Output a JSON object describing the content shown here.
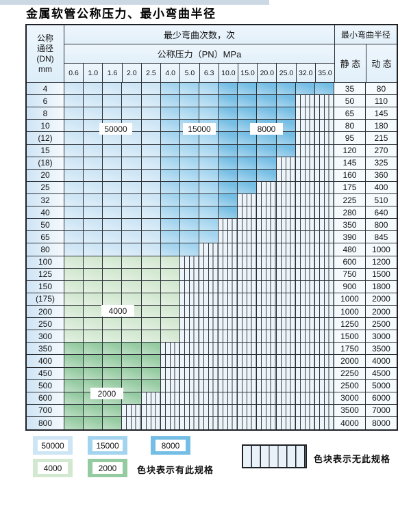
{
  "title": "金属软管公称压力、最小弯曲半径",
  "colors": {
    "blue_50000": "#cde5f5",
    "blue_15000": "#a3d4ef",
    "blue_8000": "#74bde4",
    "green_4000": "#d3e8d1",
    "green_2000": "#95cba1",
    "striped_bg": "#edf4fa"
  },
  "table": {
    "header": {
      "dn_lines": [
        "公称",
        "通径",
        "(DN)",
        "mm"
      ],
      "bend_cycles_label": "最少弯曲次数，次",
      "pressure_label": "公称压力（PN）MPa",
      "pressure_values": [
        "0.6",
        "1.0",
        "1.6",
        "2.0",
        "2.5",
        "4.0",
        "5.0",
        "6.3",
        "10.0",
        "15.0",
        "20.0",
        "25.0",
        "32.0",
        "35.0"
      ],
      "min_radius_label": "最小弯曲半径",
      "static_label": "静 态",
      "dynamic_label": "动 态"
    },
    "rows": [
      {
        "dn": "4",
        "ct": 13,
        "band": "b",
        "static": "35",
        "dynamic": "80"
      },
      {
        "dn": "6",
        "ct": 11,
        "band": "b",
        "static": "50",
        "dynamic": "110"
      },
      {
        "dn": "8",
        "ct": 11,
        "band": "b",
        "static": "65",
        "dynamic": "145"
      },
      {
        "dn": "10",
        "ct": 11,
        "band": "b",
        "static": "80",
        "dynamic": "180"
      },
      {
        "dn": "(12)",
        "ct": 11,
        "band": "b",
        "static": "95",
        "dynamic": "215"
      },
      {
        "dn": "15",
        "ct": 11,
        "band": "b",
        "static": "120",
        "dynamic": "270"
      },
      {
        "dn": "(18)",
        "ct": 10,
        "band": "b",
        "static": "145",
        "dynamic": "325"
      },
      {
        "dn": "20",
        "ct": 10,
        "band": "b",
        "static": "160",
        "dynamic": "360"
      },
      {
        "dn": "25",
        "ct": 9,
        "band": "b",
        "static": "175",
        "dynamic": "400"
      },
      {
        "dn": "32",
        "ct": 8,
        "band": "b",
        "static": "225",
        "dynamic": "510"
      },
      {
        "dn": "40",
        "ct": 8,
        "band": "b",
        "static": "280",
        "dynamic": "640"
      },
      {
        "dn": "50",
        "ct": 7,
        "band": "b",
        "static": "350",
        "dynamic": "800"
      },
      {
        "dn": "65",
        "ct": 7,
        "band": "b",
        "static": "390",
        "dynamic": "845"
      },
      {
        "dn": "80",
        "ct": 6,
        "band": "b",
        "static": "480",
        "dynamic": "1000"
      },
      {
        "dn": "100",
        "ct": 5,
        "band": "g1",
        "static": "600",
        "dynamic": "1200"
      },
      {
        "dn": "125",
        "ct": 5,
        "band": "g1",
        "static": "750",
        "dynamic": "1500"
      },
      {
        "dn": "150",
        "ct": 5,
        "band": "g1",
        "static": "900",
        "dynamic": "1800"
      },
      {
        "dn": "(175)",
        "ct": 5,
        "band": "g1",
        "static": "1000",
        "dynamic": "2000"
      },
      {
        "dn": "200",
        "ct": 5,
        "band": "g1",
        "static": "1000",
        "dynamic": "2000"
      },
      {
        "dn": "250",
        "ct": 5,
        "band": "g1",
        "static": "1250",
        "dynamic": "2500"
      },
      {
        "dn": "300",
        "ct": 5,
        "band": "g1",
        "static": "1500",
        "dynamic": "3000"
      },
      {
        "dn": "350",
        "ct": 4,
        "band": "g2",
        "static": "1750",
        "dynamic": "3500"
      },
      {
        "dn": "400",
        "ct": 4,
        "band": "g2",
        "static": "2000",
        "dynamic": "4000"
      },
      {
        "dn": "450",
        "ct": 4,
        "band": "g2",
        "static": "2250",
        "dynamic": "4500"
      },
      {
        "dn": "500",
        "ct": 4,
        "band": "g2",
        "static": "2500",
        "dynamic": "5000"
      },
      {
        "dn": "600",
        "ct": 3,
        "band": "g2",
        "static": "3000",
        "dynamic": "6000"
      },
      {
        "dn": "700",
        "ct": 2,
        "band": "g2",
        "static": "3500",
        "dynamic": "7000"
      },
      {
        "dn": "800",
        "ct": 2,
        "band": "g2",
        "static": "4000",
        "dynamic": "8000"
      }
    ]
  },
  "region_labels": [
    {
      "text": "50000"
    },
    {
      "text": "15000"
    },
    {
      "text": "8000"
    },
    {
      "text": "4000"
    },
    {
      "text": "2000"
    }
  ],
  "legend": {
    "blocks": [
      {
        "label": "50000",
        "color_key": "blue_50000"
      },
      {
        "label": "15000",
        "color_key": "blue_15000"
      },
      {
        "label": "8000",
        "color_key": "blue_8000"
      },
      {
        "label": "4000",
        "color_key": "green_4000"
      },
      {
        "label": "2000",
        "color_key": "green_2000"
      }
    ],
    "has_spec_text": "色块表示有此规格",
    "no_spec_text": "色块表示无此规格"
  }
}
